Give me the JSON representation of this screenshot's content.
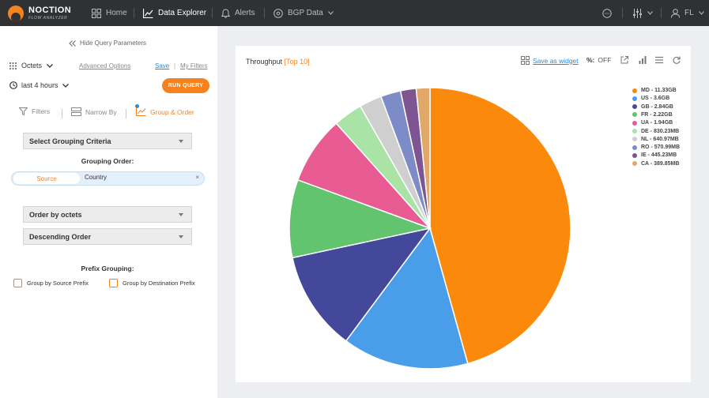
{
  "brand": {
    "name": "NOCTION",
    "subtitle": "FLOW ANALYZER",
    "accent": "#f5821f"
  },
  "nav": {
    "home": "Home",
    "data_explorer": "Data Explorer",
    "alerts": "Alerts",
    "bgp_data": "BGP Data",
    "user": "FL"
  },
  "query": {
    "hide_label": "Hide Query Parameters",
    "metric": "Octets",
    "advanced": "Advanced Options",
    "save": "Save",
    "separator": "|",
    "my_filters": "My Filters",
    "time_range": "last 4 hours",
    "run": "RUN QUERY",
    "tabs": [
      "Filters",
      "Narrow By",
      "Group & Order"
    ],
    "grouping_select": "Select Grouping Criteria",
    "grouping_order_label": "Grouping Order:",
    "grouping_chips": [
      "Source",
      "Country"
    ],
    "chip_remove": "×",
    "order_by": "Order by octets",
    "direction": "Descending Order",
    "prefix_grouping_label": "Prefix Grouping:",
    "prefix_options": [
      "Group by Source Prefix",
      "Group by Destination Prefix"
    ]
  },
  "card": {
    "title": "Throughput",
    "title_suffix": "[Top 10]",
    "save_widget": "Save as widget",
    "pct_label": "%:",
    "pct_state": "OFF"
  },
  "chart_data": {
    "type": "pie",
    "title": "Throughput",
    "categories": [
      "MD",
      "US",
      "GB",
      "FR",
      "UA",
      "DE",
      "NL",
      "RO",
      "IE",
      "CA"
    ],
    "values": [
      11330,
      3600,
      2840,
      2220,
      1940,
      830.23,
      640.97,
      570.99,
      445.23,
      389.85
    ],
    "labels": [
      "MD - 11.33GB",
      "US - 3.6GB",
      "GB - 2.84GB",
      "FR - 2.22GB",
      "UA - 1.94GB",
      "DE - 830.23MB",
      "NL - 640.97MB",
      "RO - 570.99MB",
      "IE - 445.23MB",
      "CA - 389.85MB"
    ],
    "colors": [
      "#fb8a0c",
      "#4a9de8",
      "#43489a",
      "#63c46f",
      "#e95c93",
      "#a9e3a6",
      "#cfcfcf",
      "#7d8cc6",
      "#7e5591",
      "#e1a86a"
    ],
    "legend_position": "top-right"
  }
}
